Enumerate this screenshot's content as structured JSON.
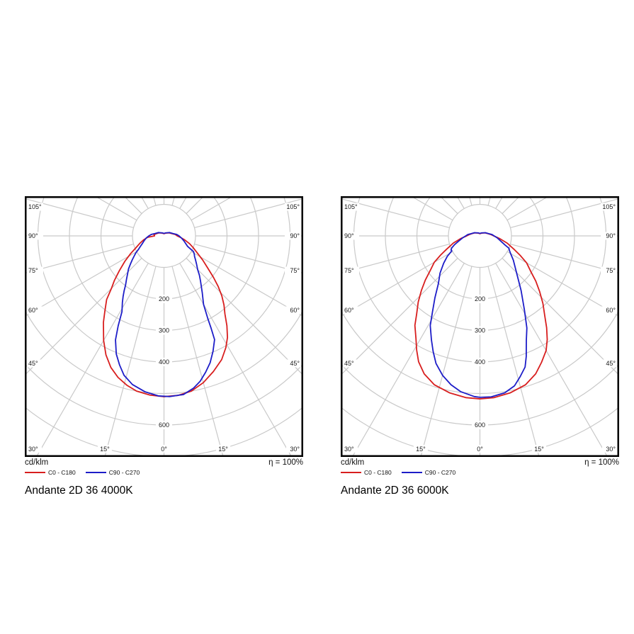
{
  "page": {
    "background": "#ffffff"
  },
  "grid": {
    "line_color": "#c9c9c9",
    "label_color": "#1a1a1a",
    "border_color": "#000000"
  },
  "charts": [
    {
      "title": "Andante 2D 36 4000K",
      "footer": {
        "unit": "cd/klm",
        "efficiency": "η = 100%"
      },
      "legend": [
        {
          "label": "C0 - C180",
          "color": "#d81e1e"
        },
        {
          "label": "C90 - C270",
          "color": "#1d1dc8"
        }
      ],
      "chart_data": {
        "type": "polar",
        "title": "Andante 2D 36 4000K",
        "units": "cd/klm",
        "efficiency_percent": 100,
        "angle_tick_labels_deg": [
          105,
          90,
          75,
          60,
          45,
          30,
          15,
          0
        ],
        "angle_grid_step_deg": 15,
        "radial_grid_values": [
          100,
          200,
          300,
          400,
          500,
          600,
          700
        ],
        "radial_labeled_values": [
          200,
          300,
          400,
          600
        ],
        "max_value": 700,
        "series": [
          {
            "name": "C0 - C180",
            "color": "#d81e1e",
            "points_deg_cdklm": [
              [
                -180,
                7
              ],
              [
                -150,
                10
              ],
              [
                -120,
                19
              ],
              [
                -105,
                26
              ],
              [
                -97,
                32
              ],
              [
                -90,
                30
              ],
              [
                -85,
                52
              ],
              [
                -79,
                66
              ],
              [
                -73,
                80
              ],
              [
                -67,
                97
              ],
              [
                -62,
                120
              ],
              [
                -57,
                148
              ],
              [
                -52,
                180
              ],
              [
                -48,
                212
              ],
              [
                -45,
                236
              ],
              [
                -42,
                272
              ],
              [
                -38,
                305
              ],
              [
                -35,
                335
              ],
              [
                -30,
                383
              ],
              [
                -26,
                420
              ],
              [
                -22,
                450
              ],
              [
                -18,
                472
              ],
              [
                -14,
                488
              ],
              [
                -10,
                500
              ],
              [
                -5,
                507
              ],
              [
                0,
                510
              ],
              [
                5,
                508
              ],
              [
                10,
                500
              ],
              [
                15,
                482
              ],
              [
                20,
                458
              ],
              [
                25,
                433
              ],
              [
                29,
                405
              ],
              [
                32,
                380
              ],
              [
                35,
                348
              ],
              [
                38,
                314
              ],
              [
                41,
                290
              ],
              [
                44,
                264
              ],
              [
                47,
                235
              ],
              [
                50,
                205
              ],
              [
                54,
                170
              ],
              [
                58,
                145
              ],
              [
                63,
                118
              ],
              [
                68,
                100
              ],
              [
                73,
                85
              ],
              [
                79,
                67
              ],
              [
                85,
                52
              ],
              [
                90,
                42
              ],
              [
                97,
                36
              ],
              [
                105,
                27
              ],
              [
                120,
                19
              ],
              [
                150,
                10
              ],
              [
                180,
                7
              ]
            ]
          },
          {
            "name": "C90 - C270",
            "color": "#1d1dc8",
            "points_deg_cdklm": [
              [
                -180,
                8
              ],
              [
                -150,
                11
              ],
              [
                -120,
                21
              ],
              [
                -105,
                29
              ],
              [
                -97,
                40
              ],
              [
                -90,
                48
              ],
              [
                -83,
                57
              ],
              [
                -77,
                64
              ],
              [
                -71,
                72
              ],
              [
                -66,
                82
              ],
              [
                -62,
                92
              ],
              [
                -59,
                104
              ],
              [
                -56,
                114
              ],
              [
                -53,
                126
              ],
              [
                -50,
                139
              ],
              [
                -47,
                154
              ],
              [
                -44,
                166
              ],
              [
                -41,
                181
              ],
              [
                -38,
                198
              ],
              [
                -36,
                215
              ],
              [
                -34,
                232
              ],
              [
                -32,
                249
              ],
              [
                -29,
                275
              ],
              [
                -27,
                320
              ],
              [
                -25,
                364
              ],
              [
                -22,
                404
              ],
              [
                -19,
                433
              ],
              [
                -16,
                460
              ],
              [
                -12,
                482
              ],
              [
                -7,
                498
              ],
              [
                -2,
                508
              ],
              [
                2,
                510
              ],
              [
                7,
                507
              ],
              [
                11,
                492
              ],
              [
                14,
                475
              ],
              [
                17,
                452
              ],
              [
                20,
                428
              ],
              [
                23,
                398
              ],
              [
                26,
                366
              ],
              [
                27,
                330
              ],
              [
                28,
                295
              ],
              [
                30,
                251
              ],
              [
                34,
                217
              ],
              [
                39,
                184
              ],
              [
                42,
                168
              ],
              [
                45,
                151
              ],
              [
                49,
                137
              ],
              [
                53,
                125
              ],
              [
                56,
                117
              ],
              [
                59,
                112
              ],
              [
                62,
                106
              ],
              [
                66,
                82
              ],
              [
                70,
                74
              ],
              [
                76,
                65
              ],
              [
                82,
                57
              ],
              [
                90,
                48
              ],
              [
                97,
                40
              ],
              [
                105,
                29
              ],
              [
                120,
                21
              ],
              [
                150,
                11
              ],
              [
                180,
                8
              ]
            ]
          }
        ]
      }
    },
    {
      "title": "Andante 2D 36 6000K",
      "footer": {
        "unit": "cd/klm",
        "efficiency": "η = 100%"
      },
      "legend": [
        {
          "label": "C0 - C180",
          "color": "#d81e1e"
        },
        {
          "label": "C90 - C270",
          "color": "#1d1dc8"
        }
      ],
      "chart_data": {
        "type": "polar",
        "title": "Andante 2D 36 6000K",
        "units": "cd/klm",
        "efficiency_percent": 100,
        "angle_tick_labels_deg": [
          105,
          90,
          75,
          60,
          45,
          30,
          15,
          0
        ],
        "angle_grid_step_deg": 15,
        "radial_grid_values": [
          100,
          200,
          300,
          400,
          500,
          600,
          700
        ],
        "radial_labeled_values": [
          200,
          300,
          400,
          600
        ],
        "max_value": 700,
        "series": [
          {
            "name": "C0 - C180",
            "color": "#d81e1e",
            "points_deg_cdklm": [
              [
                -180,
                7
              ],
              [
                -150,
                10
              ],
              [
                -120,
                19
              ],
              [
                -105,
                27
              ],
              [
                -97,
                34
              ],
              [
                -90,
                42
              ],
              [
                -82,
                62
              ],
              [
                -75,
                87
              ],
              [
                -68,
                115
              ],
              [
                -64,
                139
              ],
              [
                -60,
                167
              ],
              [
                -55,
                193
              ],
              [
                -51,
                223
              ],
              [
                -47,
                254
              ],
              [
                -43,
                287
              ],
              [
                -39,
                319
              ],
              [
                -36,
                351
              ],
              [
                -32,
                383
              ],
              [
                -29,
                414
              ],
              [
                -26,
                444
              ],
              [
                -22,
                472
              ],
              [
                -17,
                494
              ],
              [
                -11,
                507
              ],
              [
                -5,
                515
              ],
              [
                0,
                517
              ],
              [
                5,
                515
              ],
              [
                11,
                507
              ],
              [
                17,
                494
              ],
              [
                22,
                472
              ],
              [
                26,
                446
              ],
              [
                30,
                420
              ],
              [
                33,
                392
              ],
              [
                36,
                360
              ],
              [
                39,
                327
              ],
              [
                43,
                293
              ],
              [
                47,
                259
              ],
              [
                51,
                228
              ],
              [
                55,
                197
              ],
              [
                60,
                171
              ],
              [
                64,
                143
              ],
              [
                68,
                119
              ],
              [
                75,
                90
              ],
              [
                82,
                64
              ],
              [
                90,
                44
              ],
              [
                97,
                35
              ],
              [
                105,
                27
              ],
              [
                120,
                19
              ],
              [
                150,
                10
              ],
              [
                180,
                7
              ]
            ]
          },
          {
            "name": "C90 - C270",
            "color": "#1d1dc8",
            "points_deg_cdklm": [
              [
                -180,
                8
              ],
              [
                -150,
                11
              ],
              [
                -120,
                20
              ],
              [
                -105,
                28
              ],
              [
                -97,
                38
              ],
              [
                -90,
                45
              ],
              [
                -83,
                56
              ],
              [
                -76,
                70
              ],
              [
                -71,
                85
              ],
              [
                -67,
                97
              ],
              [
                -64,
                102
              ],
              [
                -62,
                101
              ],
              [
                -58,
                122
              ],
              [
                -53,
                144
              ],
              [
                -47,
                173
              ],
              [
                -41,
                201
              ],
              [
                -36,
                243
              ],
              [
                -32,
                284
              ],
              [
                -29,
                325
              ],
              [
                -25,
                364
              ],
              [
                -22,
                396
              ],
              [
                -19,
                428
              ],
              [
                -15,
                458
              ],
              [
                -11,
                481
              ],
              [
                -7,
                498
              ],
              [
                -2,
                510
              ],
              [
                0,
                512
              ],
              [
                4,
                512
              ],
              [
                9,
                504
              ],
              [
                13,
                488
              ],
              [
                16,
                464
              ],
              [
                19,
                440
              ],
              [
                21,
                410
              ],
              [
                24,
                362
              ],
              [
                27,
                328
              ],
              [
                31,
                274
              ],
              [
                37,
                217
              ],
              [
                44,
                169
              ],
              [
                54,
                131
              ],
              [
                61,
                110
              ],
              [
                64,
                104
              ],
              [
                67,
                100
              ],
              [
                70,
                85
              ],
              [
                76,
                68
              ],
              [
                83,
                56
              ],
              [
                90,
                45
              ],
              [
                97,
                38
              ],
              [
                105,
                28
              ],
              [
                120,
                20
              ],
              [
                150,
                11
              ],
              [
                180,
                8
              ]
            ]
          }
        ]
      }
    }
  ]
}
